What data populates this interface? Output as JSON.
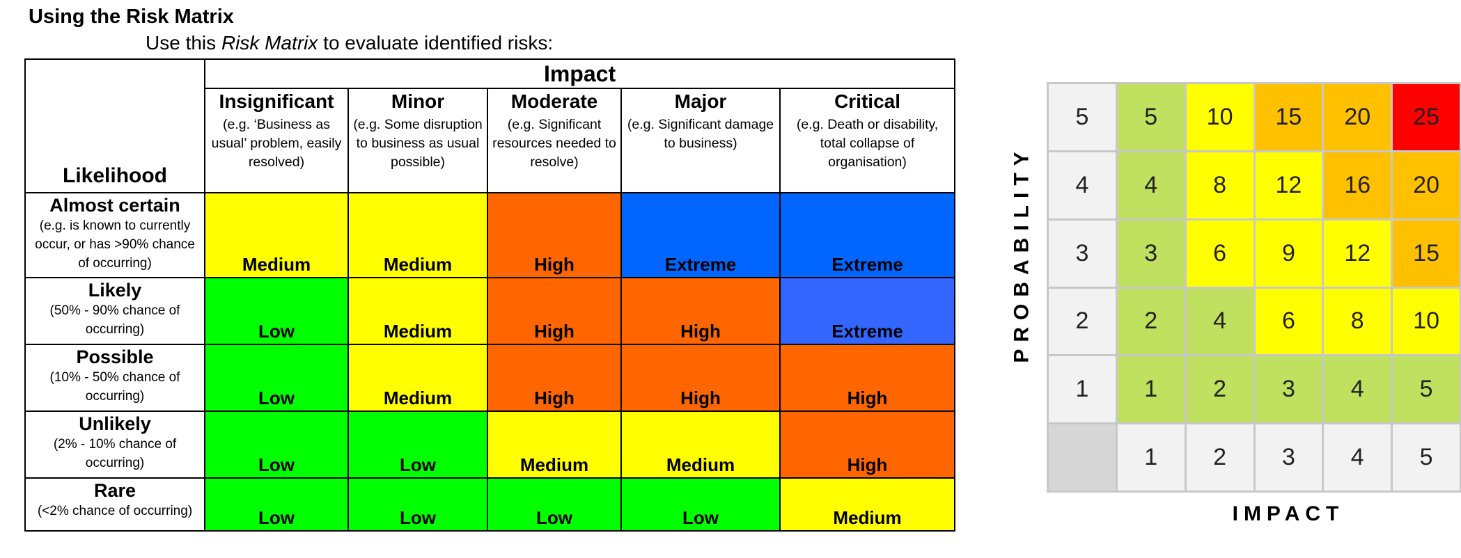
{
  "title": "Using the Risk Matrix",
  "subtitle": {
    "prefix": "Use this ",
    "emphasis": "Risk Matrix",
    "suffix": " to evaluate identified risks:"
  },
  "matrix": {
    "impact_label": "Impact",
    "likelihood_label": "Likelihood",
    "columns": [
      {
        "title": "Insignificant",
        "desc": "(e.g. ‘Business as usual’ problem, easily resolved)"
      },
      {
        "title": "Minor",
        "desc": "(e.g. Some disruption to business as usual possible)"
      },
      {
        "title": "Moderate",
        "desc": "(e.g. Significant resources needed to resolve)"
      },
      {
        "title": "Major",
        "desc": "(e.g. Significant damage to business)"
      },
      {
        "title": "Critical",
        "desc": "(e.g. Death or disability, total collapse of organisation)"
      }
    ],
    "rows": [
      {
        "title": "Almost certain",
        "desc": "(e.g. is known to currently occur, or has >90% chance of occurring)",
        "cells": [
          "Medium",
          "Medium",
          "High",
          "Extreme",
          "Extreme"
        ]
      },
      {
        "title": "Likely",
        "desc": "(50% - 90% chance of occurring)",
        "cells": [
          "Low",
          "Medium",
          "High",
          "High",
          "Extreme"
        ]
      },
      {
        "title": "Possible",
        "desc": "(10% - 50% chance of occurring)",
        "cells": [
          "Low",
          "Medium",
          "High",
          "High",
          "High"
        ]
      },
      {
        "title": "Unlikely",
        "desc": "(2% - 10% chance of occurring)",
        "cells": [
          "Low",
          "Low",
          "Medium",
          "Medium",
          "High"
        ]
      },
      {
        "title": "Rare",
        "desc": "(<2% chance of occurring)",
        "cells": [
          "Low",
          "Low",
          "Low",
          "Low",
          "Medium"
        ]
      }
    ],
    "cell_colors": [
      [
        "#ffff00",
        "#ffff00",
        "#ff6600",
        "#0066ff",
        "#0066ff"
      ],
      [
        "#00ff00",
        "#ffff00",
        "#ff6600",
        "#ff6600",
        "#3366ff"
      ],
      [
        "#00ff00",
        "#ffff00",
        "#ff6600",
        "#ff6600",
        "#ff6600"
      ],
      [
        "#00ff00",
        "#00ff00",
        "#ffff00",
        "#ffff00",
        "#ff6600"
      ],
      [
        "#00ff00",
        "#00ff00",
        "#00ff00",
        "#00ff00",
        "#ffff00"
      ]
    ]
  },
  "score_grid": {
    "y_label": "PROBABILITY",
    "x_label": "IMPACT",
    "rows": [
      {
        "label": "5",
        "values": [
          "5",
          "10",
          "15",
          "20",
          "25"
        ]
      },
      {
        "label": "4",
        "values": [
          "4",
          "8",
          "12",
          "16",
          "20"
        ]
      },
      {
        "label": "3",
        "values": [
          "3",
          "6",
          "9",
          "12",
          "15"
        ]
      },
      {
        "label": "2",
        "values": [
          "2",
          "4",
          "6",
          "8",
          "10"
        ]
      },
      {
        "label": "1",
        "values": [
          "1",
          "2",
          "3",
          "4",
          "5"
        ]
      }
    ],
    "x_ticks": [
      "1",
      "2",
      "3",
      "4",
      "5"
    ],
    "colors": [
      [
        "#bfe15f",
        "#ffff00",
        "#ffc000",
        "#ffc000",
        "#ff0000"
      ],
      [
        "#bfe15f",
        "#ffff00",
        "#ffff00",
        "#ffc000",
        "#ffc000"
      ],
      [
        "#bfe15f",
        "#ffff00",
        "#ffff00",
        "#ffff00",
        "#ffc000"
      ],
      [
        "#bfe15f",
        "#bfe15f",
        "#ffff00",
        "#ffff00",
        "#ffff00"
      ],
      [
        "#bfe15f",
        "#bfe15f",
        "#bfe15f",
        "#bfe15f",
        "#bfe15f"
      ]
    ],
    "label_cell_color": "#f2f2f2",
    "corner_color": "#d6d6d6"
  }
}
